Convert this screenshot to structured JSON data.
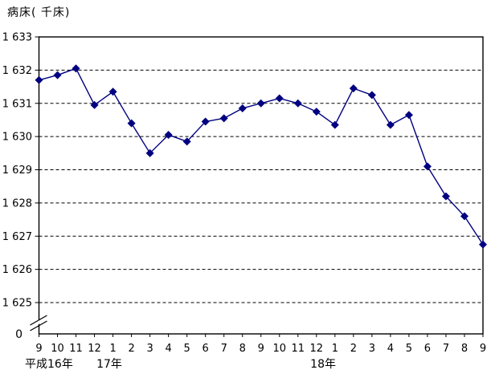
{
  "chart_data": {
    "type": "line",
    "title": "病床( 千床)",
    "ylabel": "病床( 千床)",
    "xlabel": "",
    "x_labels": [
      "9",
      "10",
      "11",
      "12",
      "1",
      "2",
      "3",
      "4",
      "5",
      "6",
      "7",
      "8",
      "9",
      "10",
      "11",
      "12",
      "1",
      "2",
      "3",
      "4",
      "5",
      "6",
      "7",
      "8",
      "9"
    ],
    "era_labels": [
      {
        "label": "平成16年",
        "start_index": 0
      },
      {
        "label": "17年",
        "start_index": 4
      },
      {
        "label": "18年",
        "start_index": 16
      }
    ],
    "values": [
      1631.7,
      1631.85,
      1632.05,
      1630.95,
      1631.35,
      1630.4,
      1629.5,
      1630.05,
      1629.85,
      1630.45,
      1630.55,
      1630.85,
      1631.0,
      1631.15,
      1631.0,
      1630.75,
      1630.35,
      1631.45,
      1631.25,
      1630.35,
      1630.65,
      1629.1,
      1628.2,
      1627.6,
      1626.75
    ],
    "y_ticks": [
      1633,
      1632,
      1631,
      1630,
      1629,
      1628,
      1627,
      1626,
      1625
    ],
    "y_tick_labels": [
      "1 633",
      "1 632",
      "1 631",
      "1 630",
      "1 629",
      "1 628",
      "1 627",
      "1 626",
      "1 625"
    ],
    "origin_label": "0",
    "ylim_display": [
      1625,
      1633
    ],
    "axis_break": true,
    "grid": "horizontal-dashed",
    "legend": "none",
    "line_color": "#000080",
    "marker": "diamond",
    "axis_color": "#000000"
  }
}
